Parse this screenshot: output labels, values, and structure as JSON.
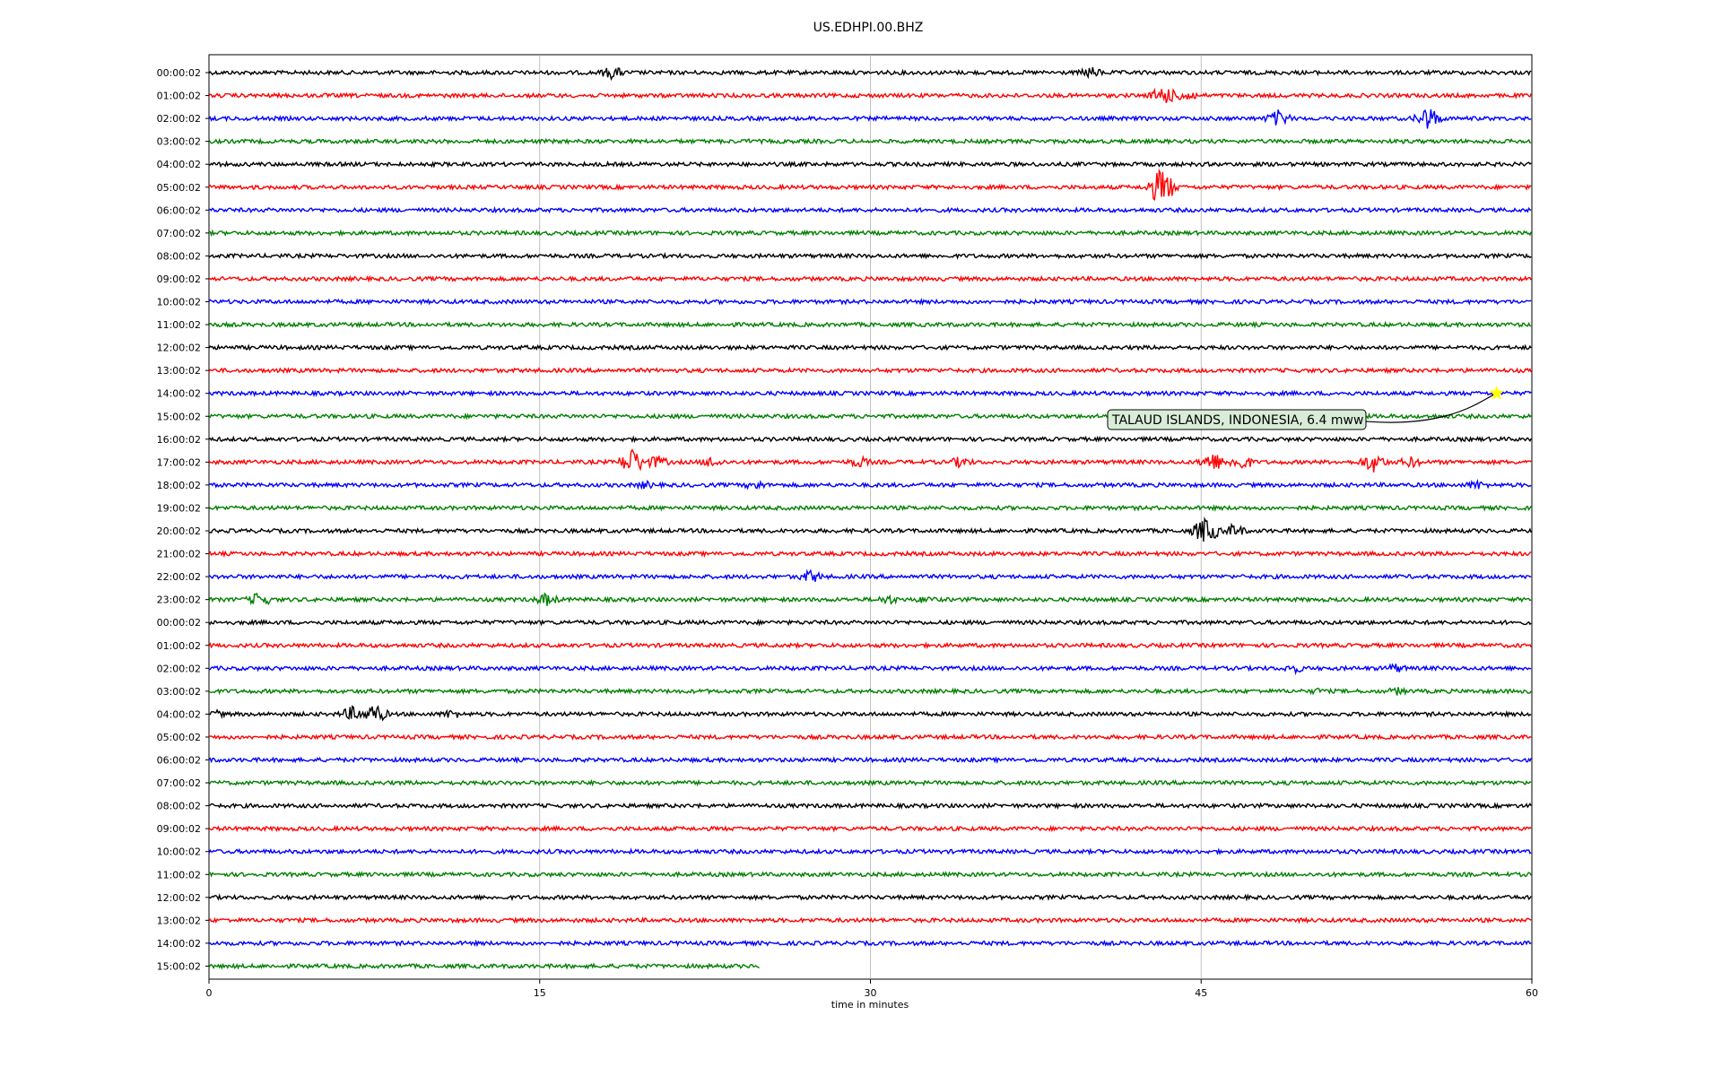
{
  "chart_data": {
    "type": "line",
    "title": "US.EDHPI.00.BHZ",
    "xlabel": "time in minutes",
    "ylabel": "",
    "xlim": [
      0,
      60
    ],
    "xticks": [
      "0",
      "15",
      "30",
      "45",
      "60"
    ],
    "xtick_values": [
      0,
      15,
      30,
      45,
      60
    ],
    "grid": "vertical",
    "colors": [
      "#000000",
      "#ff0000",
      "#0000ff",
      "#008000"
    ],
    "row_labels": [
      "00:00:02",
      "01:00:02",
      "02:00:02",
      "03:00:02",
      "04:00:02",
      "05:00:02",
      "06:00:02",
      "07:00:02",
      "08:00:02",
      "09:00:02",
      "10:00:02",
      "11:00:02",
      "12:00:02",
      "13:00:02",
      "14:00:02",
      "15:00:02",
      "16:00:02",
      "17:00:02",
      "18:00:02",
      "19:00:02",
      "20:00:02",
      "21:00:02",
      "22:00:02",
      "23:00:02",
      "00:00:02",
      "01:00:02",
      "02:00:02",
      "03:00:02",
      "04:00:02",
      "05:00:02",
      "06:00:02",
      "07:00:02",
      "08:00:02",
      "09:00:02",
      "10:00:02",
      "11:00:02",
      "12:00:02",
      "13:00:02",
      "14:00:02",
      "15:00:02"
    ],
    "last_row_end_minute": 25,
    "events": [
      {
        "row": 0,
        "minute": 18.3,
        "amp": 8
      },
      {
        "row": 0,
        "minute": 40,
        "amp": 7
      },
      {
        "row": 1,
        "minute": 43.3,
        "amp": 12
      },
      {
        "row": 1,
        "minute": 44.3,
        "amp": 8
      },
      {
        "row": 2,
        "minute": 48.5,
        "amp": 10
      },
      {
        "row": 2,
        "minute": 55.3,
        "amp": 14
      },
      {
        "row": 3,
        "minute": 24.5,
        "amp": 3
      },
      {
        "row": 5,
        "minute": 43.2,
        "amp": 22
      },
      {
        "row": 17,
        "minute": 19.2,
        "amp": 16
      },
      {
        "row": 17,
        "minute": 20.3,
        "amp": 8
      },
      {
        "row": 17,
        "minute": 22.8,
        "amp": 7
      },
      {
        "row": 17,
        "minute": 29.5,
        "amp": 7
      },
      {
        "row": 17,
        "minute": 34.1,
        "amp": 7
      },
      {
        "row": 17,
        "minute": 45.5,
        "amp": 12
      },
      {
        "row": 17,
        "minute": 46.8,
        "amp": 10
      },
      {
        "row": 17,
        "minute": 52.8,
        "amp": 12
      },
      {
        "row": 17,
        "minute": 54.5,
        "amp": 7
      },
      {
        "row": 18,
        "minute": 19.8,
        "amp": 5
      },
      {
        "row": 18,
        "minute": 24.8,
        "amp": 6
      },
      {
        "row": 18,
        "minute": 57.5,
        "amp": 6
      },
      {
        "row": 20,
        "minute": 45.2,
        "amp": 16
      },
      {
        "row": 20,
        "minute": 46.5,
        "amp": 8
      },
      {
        "row": 22,
        "minute": 27.3,
        "amp": 8
      },
      {
        "row": 23,
        "minute": 2.3,
        "amp": 9
      },
      {
        "row": 23,
        "minute": 15.3,
        "amp": 8
      },
      {
        "row": 23,
        "minute": 30.8,
        "amp": 6
      },
      {
        "row": 23,
        "minute": 32.5,
        "amp": 5
      },
      {
        "row": 26,
        "minute": 49.2,
        "amp": 6
      },
      {
        "row": 26,
        "minute": 53.8,
        "amp": 6
      },
      {
        "row": 27,
        "minute": 50.3,
        "amp": 4
      },
      {
        "row": 27,
        "minute": 53.9,
        "amp": 5
      },
      {
        "row": 28,
        "minute": 6.5,
        "amp": 9
      },
      {
        "row": 28,
        "minute": 7.5,
        "amp": 12
      },
      {
        "row": 28,
        "minute": 11,
        "amp": 6
      },
      {
        "row": 28,
        "minute": 0.3,
        "amp": 5
      }
    ],
    "annotation": {
      "text": "TALAUD ISLANDS, INDONESIA, 6.4 mww",
      "row": 14,
      "minute": 58.4,
      "marker": "star",
      "marker_color": "#ffff00",
      "box_color": "#d8ecd8"
    }
  }
}
